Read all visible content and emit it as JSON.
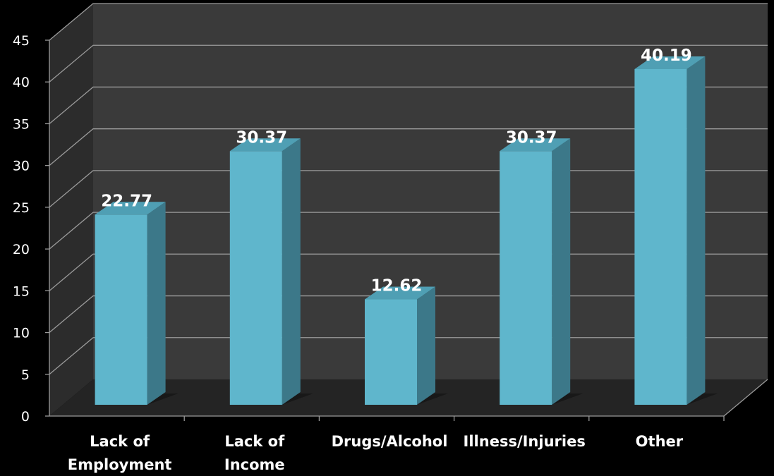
{
  "chart_data": {
    "type": "bar",
    "style": "3d-column",
    "categories": [
      [
        "Lack of",
        "Employment"
      ],
      [
        "Lack of",
        "Income"
      ],
      [
        "Drugs/Alcohol"
      ],
      [
        "Illness/Injuries"
      ],
      [
        "Other"
      ]
    ],
    "values": [
      22.77,
      30.37,
      12.62,
      30.37,
      40.19
    ],
    "value_labels": [
      "22.77",
      "30.37",
      "12.62",
      "30.37",
      "40.19"
    ],
    "y_ticks": [
      "0",
      "5",
      "10",
      "15",
      "20",
      "25",
      "30",
      "35",
      "40",
      "45"
    ],
    "ylim": [
      0,
      45
    ],
    "grid": true,
    "legend": "none",
    "colors": {
      "background": "#000000",
      "wall": "#3a3a3a",
      "wall_side": "#2c2c2c",
      "floor": "#242424",
      "gridline": "#9a9a9a",
      "bar_front": "#5fb6cc",
      "bar_side": "#3c7889",
      "bar_top": "#4f9fb4",
      "text": "#ffffff"
    }
  }
}
